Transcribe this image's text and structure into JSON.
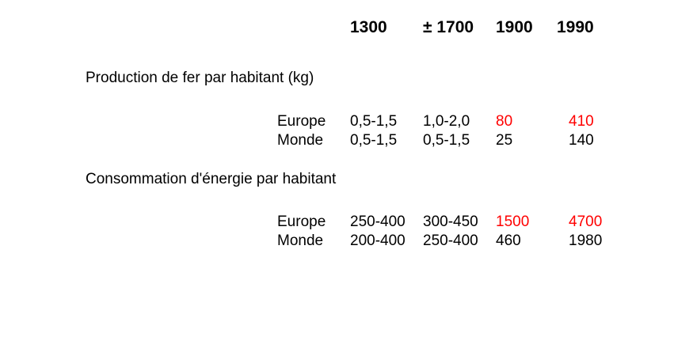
{
  "header": {
    "years": [
      "1300",
      "± 1700",
      "1900",
      "1990"
    ]
  },
  "sections": [
    {
      "title": "Production de fer par habitant (kg)",
      "rows": [
        {
          "label": "Europe",
          "values": [
            "0,5-1,5",
            "1,0-2,0",
            "80",
            "410"
          ]
        },
        {
          "label": "Monde",
          "values": [
            "0,5-1,5",
            "0,5-1,5",
            "25",
            "140"
          ]
        }
      ]
    },
    {
      "title": "Consommation d'énergie par habitant",
      "rows": [
        {
          "label": "Europe",
          "values": [
            "250-400",
            "300-450",
            "1500",
            "4700"
          ]
        },
        {
          "label": "Monde",
          "values": [
            "200-400",
            "250-400",
            "460",
            "1980"
          ]
        }
      ]
    }
  ],
  "colors": {
    "highlight": "#ff0000",
    "text": "#000000"
  }
}
